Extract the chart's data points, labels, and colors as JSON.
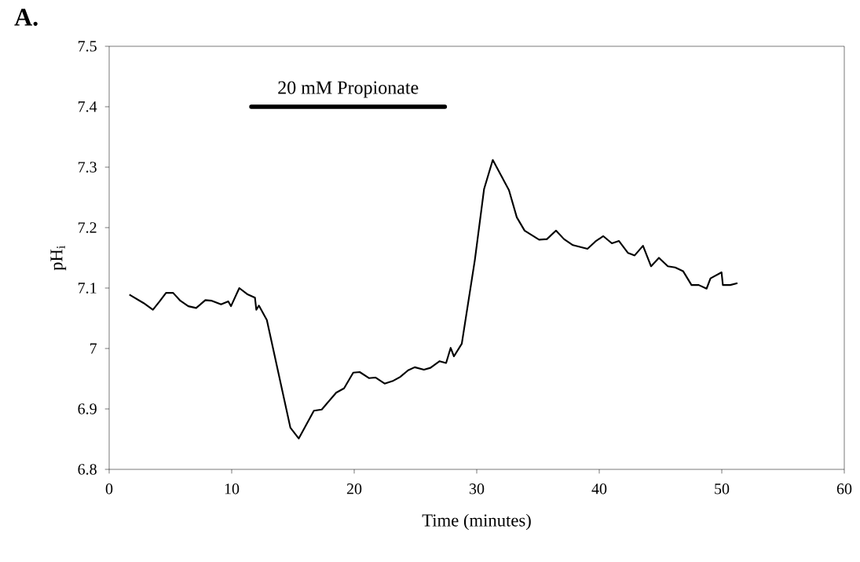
{
  "chart_data": {
    "type": "line",
    "xlabel": "Time (minutes)",
    "ylabel": "pH$_{i}$",
    "annotations": [
      "**A.**"
    ],
    "xlim": [
      0,
      60
    ],
    "xticks": [
      0,
      10,
      20,
      30,
      40,
      50,
      60
    ],
    "ylim": [
      6.8,
      7.5
    ],
    "yticks": [
      6.8,
      6.9,
      {
        "value": 7,
        "label": "7"
      },
      7.1,
      7.2,
      7.3,
      7.4,
      7.5
    ],
    "marker": "none",
    "line_style": "solid",
    "series": [
      {
        "name": "20 mM Propionate",
        "color": "#000000",
        "x": [
          11.6,
          27.4
        ],
        "values": [
          7.4,
          7.4
        ]
      },
      {
        "color": "#000000",
        "x": [
          1.65,
          2.82,
          3.57,
          4.12,
          4.64,
          5.22,
          5.81,
          6.46,
          7.1,
          7.85,
          8.38,
          9.13,
          9.72,
          9.94,
          10.62,
          11.26,
          11.9,
          12.01,
          12.22,
          12.87,
          14.79,
          15.47,
          16.71,
          17.35,
          18.53,
          19.17,
          19.92,
          20.45,
          21.2,
          21.73,
          22.48,
          23.12,
          23.76,
          24.4,
          24.94,
          25.69,
          26.22,
          26.97,
          27.5,
          27.87,
          28.14,
          28.78,
          29.85,
          30.6,
          31.31,
          32.63,
          33.27,
          33.91,
          35.09,
          35.73,
          36.47,
          37.12,
          37.85,
          39.04,
          39.68,
          40.32,
          41.03,
          41.6,
          42.35,
          42.89,
          43.57,
          44.23,
          44.87,
          45.6,
          46.2,
          46.84,
          47.53,
          48.12,
          48.76,
          49.08,
          49.98,
          50.09,
          50.69,
          51.28
        ],
        "values": [
          7.089,
          7.075,
          7.064,
          7.078,
          7.092,
          7.092,
          7.079,
          7.07,
          7.067,
          7.08,
          7.079,
          7.073,
          7.078,
          7.07,
          7.1,
          7.09,
          7.084,
          7.064,
          7.071,
          7.047,
          6.869,
          6.851,
          6.897,
          6.899,
          6.927,
          6.934,
          6.96,
          6.961,
          6.951,
          6.952,
          6.942,
          6.946,
          6.953,
          6.964,
          6.969,
          6.965,
          6.968,
          6.979,
          6.976,
          7.001,
          6.987,
          7.008,
          7.147,
          7.264,
          7.312,
          7.262,
          7.217,
          7.195,
          7.18,
          7.181,
          7.195,
          7.181,
          7.171,
          7.165,
          7.177,
          7.186,
          7.174,
          7.178,
          7.158,
          7.154,
          7.17,
          7.136,
          7.15,
          7.136,
          7.134,
          7.128,
          7.105,
          7.105,
          7.099,
          7.116,
          7.126,
          7.105,
          7.105,
          7.108
        ]
      }
    ]
  }
}
